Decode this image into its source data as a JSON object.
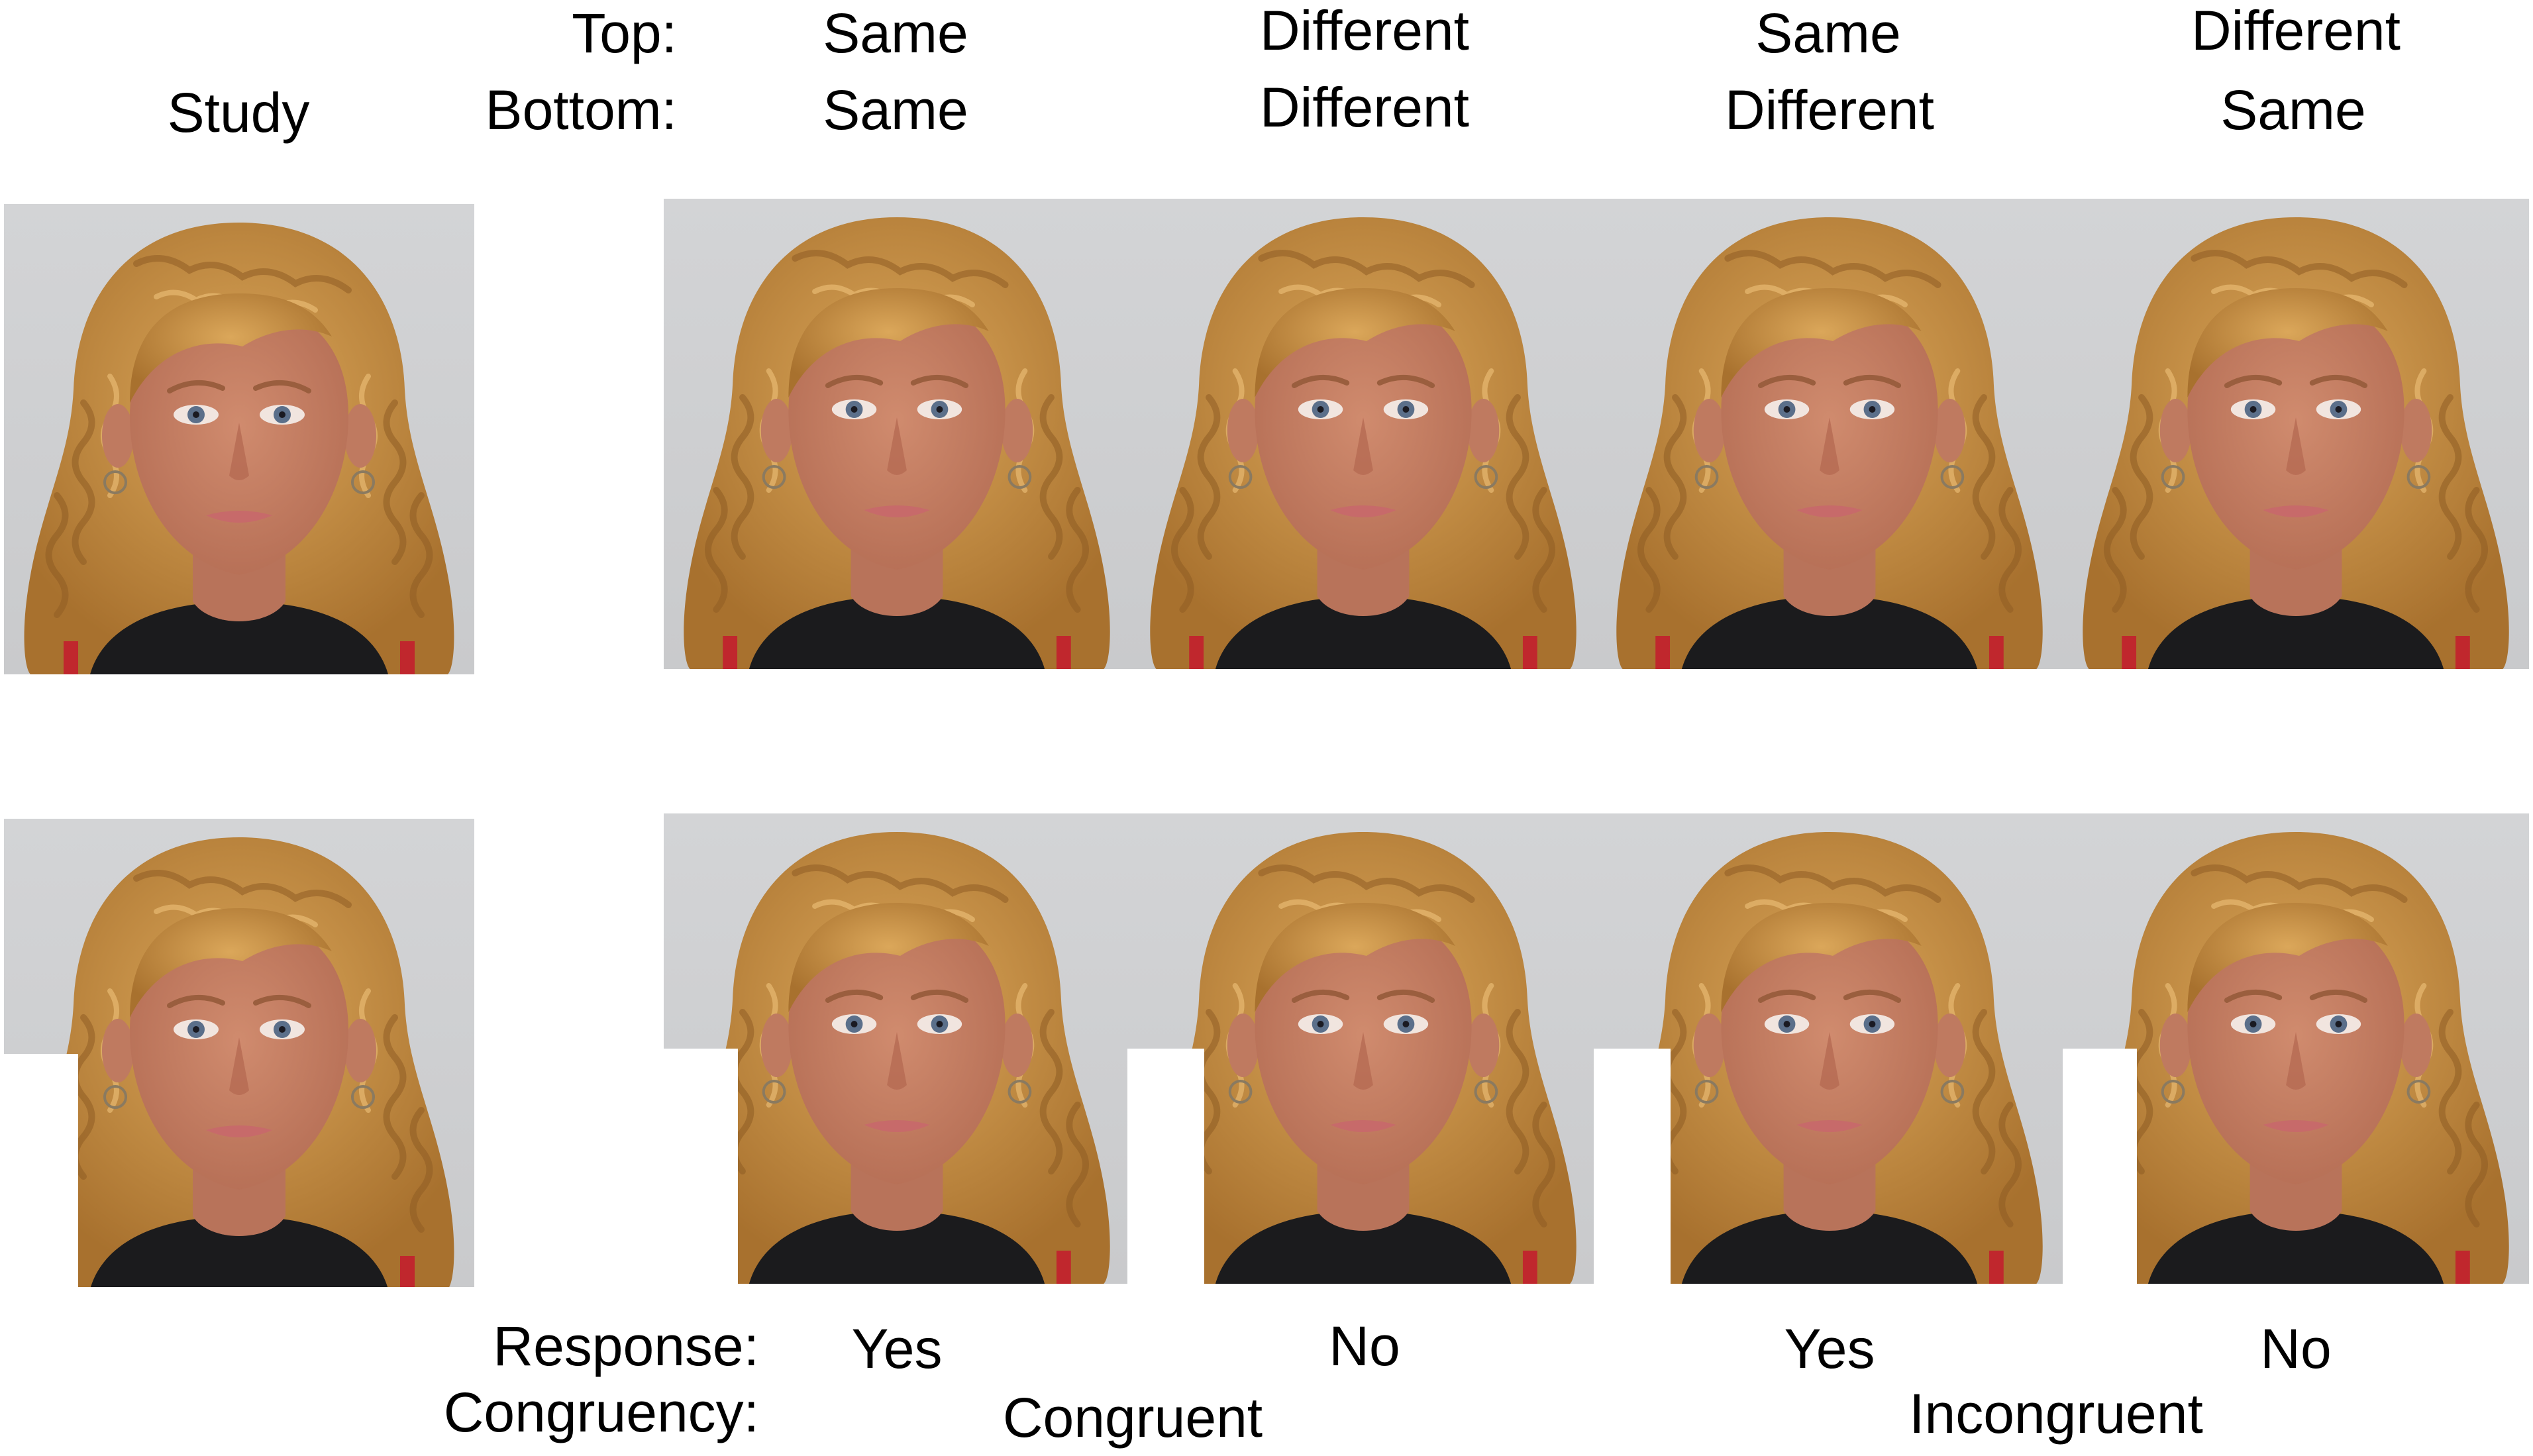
{
  "header": {
    "study_label": "Study",
    "top_label": "Top:",
    "bottom_label": "Bottom:"
  },
  "conditions": [
    {
      "top": "Same",
      "bottom": "Same",
      "response": "Yes"
    },
    {
      "top": "Different",
      "bottom": "Different",
      "response": "No"
    },
    {
      "top": "Same",
      "bottom": "Different",
      "response": "Yes"
    },
    {
      "top": "Different",
      "bottom": "Same",
      "response": "No"
    }
  ],
  "footer": {
    "response_label": "Response:",
    "congruency_label": "Congruency:",
    "congruent": "Congruent",
    "incongruent": "Incongruent"
  },
  "colors": {
    "background": "#cfd0d2",
    "hair": "#c9913f",
    "skin": "#c98266",
    "shirt": "#1b1b1d",
    "strap": "#c0272d"
  }
}
